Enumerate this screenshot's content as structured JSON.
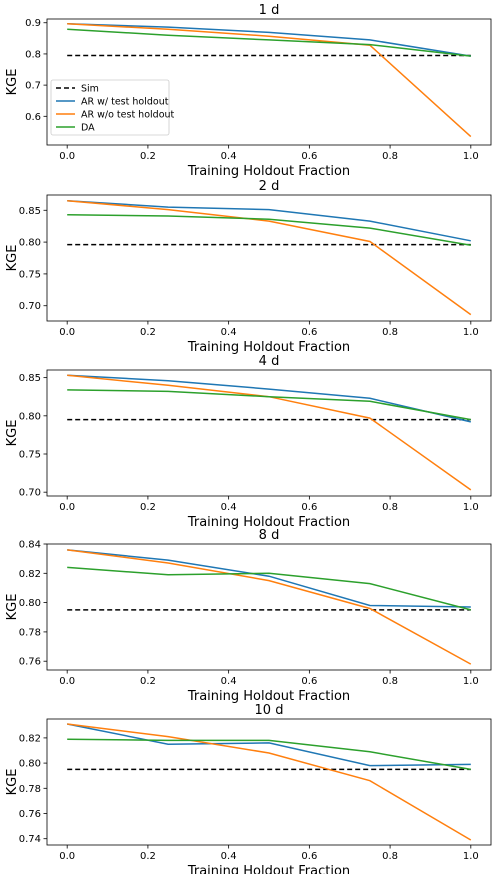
{
  "colors": {
    "Sim": "#000000",
    "AR w/ test holdout": "#1f77b4",
    "AR w/o test holdout": "#ff7f0e",
    "DA": "#2ca02c"
  },
  "chart_data": [
    {
      "type": "line",
      "title": "1 d",
      "xlabel": "Training Holdout Fraction",
      "ylabel": "KGE",
      "x": [
        0.0,
        0.25,
        0.5,
        0.75,
        1.0
      ],
      "xlim": [
        -0.05,
        1.05
      ],
      "ylim": [
        0.508,
        0.912
      ],
      "xticks": [
        0.0,
        0.2,
        0.4,
        0.6,
        0.8,
        1.0
      ],
      "yticks": [
        0.6,
        0.7,
        0.8,
        0.9
      ],
      "legend": {
        "placement": "lower-left",
        "entries": [
          "Sim",
          "AR w/ test holdout",
          "AR w/o test holdout",
          "DA"
        ]
      },
      "series": [
        {
          "name": "Sim",
          "style": "dashed",
          "values": [
            0.795,
            0.795,
            0.795,
            0.795,
            0.795
          ]
        },
        {
          "name": "AR w/ test holdout",
          "values": [
            0.897,
            0.886,
            0.869,
            0.845,
            0.793
          ]
        },
        {
          "name": "AR w/o test holdout",
          "values": [
            0.897,
            0.879,
            0.857,
            0.828,
            0.535
          ]
        },
        {
          "name": "DA",
          "values": [
            0.879,
            0.86,
            0.845,
            0.83,
            0.793
          ]
        }
      ]
    },
    {
      "type": "line",
      "title": "2 d",
      "xlabel": "Training Holdout Fraction",
      "ylabel": "KGE",
      "x": [
        0.0,
        0.25,
        0.5,
        0.75,
        1.0
      ],
      "xlim": [
        -0.05,
        1.05
      ],
      "ylim": [
        0.676,
        0.874
      ],
      "xticks": [
        0.0,
        0.2,
        0.4,
        0.6,
        0.8,
        1.0
      ],
      "yticks": [
        0.7,
        0.75,
        0.8,
        0.85
      ],
      "series": [
        {
          "name": "Sim",
          "style": "dashed",
          "values": [
            0.796,
            0.796,
            0.796,
            0.796,
            0.796
          ]
        },
        {
          "name": "AR w/ test holdout",
          "values": [
            0.865,
            0.855,
            0.851,
            0.833,
            0.802
          ]
        },
        {
          "name": "AR w/o test holdout",
          "values": [
            0.865,
            0.851,
            0.833,
            0.801,
            0.686
          ]
        },
        {
          "name": "DA",
          "values": [
            0.843,
            0.841,
            0.836,
            0.822,
            0.795
          ]
        }
      ]
    },
    {
      "type": "line",
      "title": "4 d",
      "xlabel": "Training Holdout Fraction",
      "ylabel": "KGE",
      "x": [
        0.0,
        0.25,
        0.5,
        0.75,
        1.0
      ],
      "xlim": [
        -0.05,
        1.05
      ],
      "ylim": [
        0.695,
        0.86
      ],
      "xticks": [
        0.0,
        0.2,
        0.4,
        0.6,
        0.8,
        1.0
      ],
      "yticks": [
        0.7,
        0.75,
        0.8,
        0.85
      ],
      "series": [
        {
          "name": "Sim",
          "style": "dashed",
          "values": [
            0.795,
            0.795,
            0.795,
            0.795,
            0.795
          ]
        },
        {
          "name": "AR w/ test holdout",
          "values": [
            0.853,
            0.846,
            0.835,
            0.823,
            0.792
          ]
        },
        {
          "name": "AR w/o test holdout",
          "values": [
            0.853,
            0.84,
            0.825,
            0.797,
            0.703
          ]
        },
        {
          "name": "DA",
          "values": [
            0.834,
            0.832,
            0.825,
            0.819,
            0.795
          ]
        }
      ]
    },
    {
      "type": "line",
      "title": "8 d",
      "xlabel": "Training Holdout Fraction",
      "ylabel": "KGE",
      "x": [
        0.0,
        0.25,
        0.5,
        0.75,
        1.0
      ],
      "xlim": [
        -0.05,
        1.05
      ],
      "ylim": [
        0.754,
        0.84
      ],
      "xticks": [
        0.0,
        0.2,
        0.4,
        0.6,
        0.8,
        1.0
      ],
      "yticks": [
        0.76,
        0.78,
        0.8,
        0.82,
        0.84
      ],
      "series": [
        {
          "name": "Sim",
          "style": "dashed",
          "values": [
            0.795,
            0.795,
            0.795,
            0.795,
            0.795
          ]
        },
        {
          "name": "AR w/ test holdout",
          "values": [
            0.836,
            0.829,
            0.818,
            0.798,
            0.797
          ]
        },
        {
          "name": "AR w/o test holdout",
          "values": [
            0.836,
            0.827,
            0.815,
            0.796,
            0.758
          ]
        },
        {
          "name": "DA",
          "values": [
            0.824,
            0.819,
            0.82,
            0.813,
            0.795
          ]
        }
      ]
    },
    {
      "type": "line",
      "title": "10 d",
      "xlabel": "Training Holdout Fraction",
      "ylabel": "KGE",
      "x": [
        0.0,
        0.25,
        0.5,
        0.75,
        1.0
      ],
      "xlim": [
        -0.05,
        1.05
      ],
      "ylim": [
        0.735,
        0.835
      ],
      "xticks": [
        0.0,
        0.2,
        0.4,
        0.6,
        0.8,
        1.0
      ],
      "yticks": [
        0.74,
        0.76,
        0.78,
        0.8,
        0.82
      ],
      "series": [
        {
          "name": "Sim",
          "style": "dashed",
          "values": [
            0.795,
            0.795,
            0.795,
            0.795,
            0.795
          ]
        },
        {
          "name": "AR w/ test holdout",
          "values": [
            0.831,
            0.815,
            0.816,
            0.798,
            0.799
          ]
        },
        {
          "name": "AR w/o test holdout",
          "values": [
            0.831,
            0.821,
            0.808,
            0.786,
            0.739
          ]
        },
        {
          "name": "DA",
          "values": [
            0.819,
            0.818,
            0.818,
            0.809,
            0.795
          ]
        }
      ]
    }
  ]
}
